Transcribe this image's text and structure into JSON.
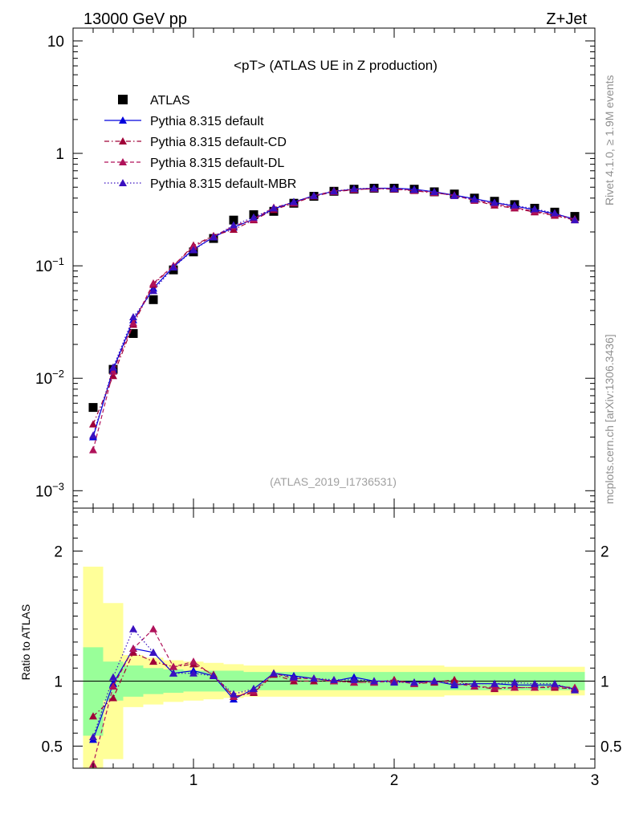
{
  "header": {
    "left_label": "13000 GeV pp",
    "right_label": "Z+Jet",
    "plot_title": "<pT> (ATLAS UE in Z production)",
    "analysis_id": "(ATLAS_2019_I1736531)",
    "side_label_top": "Rivet 4.1.0, ≥ 1.9M events",
    "side_label_bottom": "mcplots.cern.ch [arXiv:1306.3436]"
  },
  "legend": [
    {
      "label": "ATLAS",
      "color": "#000000",
      "marker": "square",
      "dash": "none"
    },
    {
      "label": "Pythia 8.315 default",
      "color": "#0000dd",
      "marker": "triangle",
      "dash": "solid"
    },
    {
      "label": "Pythia 8.315 default-CD",
      "color": "#a00038",
      "marker": "triangle",
      "dash": "dashdot"
    },
    {
      "label": "Pythia 8.315 default-DL",
      "color": "#b0125a",
      "marker": "triangle",
      "dash": "dashed"
    },
    {
      "label": "Pythia 8.315 default-MBR",
      "color": "#3a10c0",
      "marker": "triangle",
      "dash": "dotted"
    }
  ],
  "chart_data": [
    {
      "type": "scatter",
      "panel": "main",
      "title": "<pT> (ATLAS UE in Z production)",
      "xlabel": "",
      "ylabel": "",
      "yscale": "log",
      "xlim": [
        0.4,
        3.0
      ],
      "ylim": [
        0.0007,
        13
      ],
      "y_ticks": [
        {
          "value": 0.001,
          "base": "10",
          "exp": "−3"
        },
        {
          "value": 0.01,
          "base": "10",
          "exp": "−2"
        },
        {
          "value": 0.1,
          "base": "10",
          "exp": "−1"
        },
        {
          "value": 1,
          "base": "1",
          "exp": ""
        },
        {
          "value": 10,
          "base": "10",
          "exp": ""
        }
      ],
      "x": [
        0.5,
        0.6,
        0.7,
        0.8,
        0.9,
        1.0,
        1.1,
        1.2,
        1.3,
        1.4,
        1.5,
        1.6,
        1.7,
        1.8,
        1.9,
        2.0,
        2.1,
        2.2,
        2.3,
        2.4,
        2.5,
        2.6,
        2.7,
        2.8,
        2.9
      ],
      "series": [
        {
          "name": "ATLAS",
          "values": [
            0.0055,
            0.012,
            0.025,
            0.05,
            0.092,
            0.133,
            0.175,
            0.255,
            0.285,
            0.305,
            0.36,
            0.415,
            0.46,
            0.48,
            0.49,
            0.49,
            0.48,
            0.455,
            0.435,
            0.4,
            0.375,
            0.35,
            0.325,
            0.3,
            0.275
          ]
        },
        {
          "name": "Pythia 8.315 default",
          "values": [
            0.003,
            0.012,
            0.033,
            0.063,
            0.098,
            0.14,
            0.18,
            0.22,
            0.26,
            0.32,
            0.37,
            0.42,
            0.46,
            0.48,
            0.49,
            0.49,
            0.48,
            0.455,
            0.425,
            0.395,
            0.365,
            0.34,
            0.315,
            0.29,
            0.26
          ]
        },
        {
          "name": "Pythia 8.315 default-CD",
          "values": [
            0.0039,
            0.0105,
            0.03,
            0.068,
            0.1,
            0.152,
            0.185,
            0.21,
            0.255,
            0.315,
            0.36,
            0.415,
            0.455,
            0.475,
            0.485,
            0.48,
            0.465,
            0.445,
            0.425,
            0.38,
            0.345,
            0.325,
            0.3,
            0.28,
            0.255
          ]
        },
        {
          "name": "Pythia 8.315 default-DL",
          "values": [
            0.0023,
            0.0115,
            0.031,
            0.07,
            0.1,
            0.148,
            0.183,
            0.225,
            0.26,
            0.33,
            0.365,
            0.42,
            0.465,
            0.475,
            0.485,
            0.485,
            0.47,
            0.45,
            0.42,
            0.385,
            0.355,
            0.33,
            0.305,
            0.285,
            0.26
          ]
        },
        {
          "name": "Pythia 8.315 default-MBR",
          "values": [
            0.0031,
            0.0125,
            0.035,
            0.06,
            0.097,
            0.138,
            0.18,
            0.23,
            0.27,
            0.325,
            0.37,
            0.42,
            0.46,
            0.485,
            0.49,
            0.485,
            0.475,
            0.455,
            0.42,
            0.39,
            0.365,
            0.345,
            0.32,
            0.295,
            0.255
          ]
        }
      ]
    },
    {
      "type": "scatter",
      "panel": "ratio",
      "xlabel": "",
      "ylabel": "Ratio to ATLAS",
      "xlim": [
        0.4,
        3.0
      ],
      "ylim": [
        0.33,
        2.33
      ],
      "x_ticks": [
        1,
        2,
        3
      ],
      "y_ticks": [
        0.5,
        1,
        2
      ],
      "x": [
        0.5,
        0.6,
        0.7,
        0.8,
        0.9,
        1.0,
        1.1,
        1.2,
        1.3,
        1.4,
        1.5,
        1.6,
        1.7,
        1.8,
        1.9,
        2.0,
        2.1,
        2.2,
        2.3,
        2.4,
        2.5,
        2.6,
        2.7,
        2.8,
        2.9
      ],
      "bin_edges": [
        0.45,
        0.55,
        0.65,
        0.75,
        0.85,
        0.95,
        1.05,
        1.15,
        1.25,
        1.35,
        1.45,
        1.55,
        1.65,
        1.75,
        1.85,
        1.95,
        2.05,
        2.15,
        2.25,
        2.35,
        2.45,
        2.55,
        2.65,
        2.75,
        2.85,
        2.95
      ],
      "band_inner": [
        [
          0.58,
          1.26
        ],
        [
          0.85,
          1.15
        ],
        [
          0.88,
          1.12
        ],
        [
          0.9,
          1.1
        ],
        [
          0.91,
          1.09
        ],
        [
          0.92,
          1.08
        ],
        [
          0.92,
          1.08
        ],
        [
          0.92,
          1.08
        ],
        [
          0.93,
          1.07
        ],
        [
          0.93,
          1.07
        ],
        [
          0.93,
          1.07
        ],
        [
          0.93,
          1.07
        ],
        [
          0.93,
          1.07
        ],
        [
          0.93,
          1.07
        ],
        [
          0.93,
          1.07
        ],
        [
          0.93,
          1.07
        ],
        [
          0.93,
          1.07
        ],
        [
          0.93,
          1.07
        ],
        [
          0.93,
          1.07
        ],
        [
          0.93,
          1.07
        ],
        [
          0.93,
          1.07
        ],
        [
          0.93,
          1.07
        ],
        [
          0.93,
          1.07
        ],
        [
          0.93,
          1.07
        ],
        [
          0.93,
          1.07
        ]
      ],
      "band_outer": [
        [
          0.33,
          1.88
        ],
        [
          0.4,
          1.6
        ],
        [
          0.8,
          1.2
        ],
        [
          0.82,
          1.18
        ],
        [
          0.84,
          1.16
        ],
        [
          0.85,
          1.15
        ],
        [
          0.86,
          1.14
        ],
        [
          0.87,
          1.13
        ],
        [
          0.88,
          1.12
        ],
        [
          0.88,
          1.12
        ],
        [
          0.88,
          1.12
        ],
        [
          0.88,
          1.12
        ],
        [
          0.88,
          1.12
        ],
        [
          0.88,
          1.12
        ],
        [
          0.88,
          1.12
        ],
        [
          0.88,
          1.12
        ],
        [
          0.88,
          1.12
        ],
        [
          0.88,
          1.12
        ],
        [
          0.89,
          1.11
        ],
        [
          0.89,
          1.11
        ],
        [
          0.89,
          1.11
        ],
        [
          0.89,
          1.11
        ],
        [
          0.89,
          1.11
        ],
        [
          0.89,
          1.11
        ],
        [
          0.89,
          1.11
        ]
      ],
      "series": [
        {
          "name": "Pythia 8.315 default",
          "values": [
            0.55,
            0.98,
            1.25,
            1.22,
            1.06,
            1.08,
            1.04,
            0.86,
            0.94,
            1.06,
            1.04,
            1.02,
            1.0,
            1.03,
            1.0,
            1.0,
            0.99,
            1.0,
            0.97,
            0.98,
            0.98,
            0.97,
            0.97,
            0.97,
            0.94
          ]
        },
        {
          "name": "Pythia 8.315 default-CD",
          "values": [
            0.73,
            0.87,
            1.22,
            1.15,
            1.11,
            1.13,
            1.05,
            0.88,
            0.91,
            1.05,
            1.0,
            1.0,
            1.0,
            0.99,
            0.99,
            1.01,
            0.98,
            0.99,
            1.01,
            0.96,
            0.94,
            0.95,
            0.95,
            0.95,
            0.94
          ]
        },
        {
          "name": "Pythia 8.315 default-DL",
          "values": [
            0.36,
            0.96,
            1.25,
            1.4,
            1.11,
            1.15,
            1.04,
            0.88,
            0.92,
            1.06,
            1.02,
            1.02,
            1.0,
            0.99,
            0.99,
            1.0,
            0.98,
            1.0,
            0.98,
            0.96,
            0.95,
            0.95,
            0.95,
            0.96,
            0.95
          ]
        },
        {
          "name": "Pythia 8.315 default-MBR",
          "values": [
            0.57,
            1.03,
            1.4,
            1.22,
            1.06,
            1.06,
            1.04,
            0.9,
            0.94,
            1.06,
            1.03,
            1.02,
            1.01,
            1.01,
            1.0,
            0.99,
            0.99,
            1.0,
            0.98,
            0.98,
            0.98,
            0.99,
            0.98,
            0.98,
            0.93
          ]
        }
      ]
    }
  ]
}
